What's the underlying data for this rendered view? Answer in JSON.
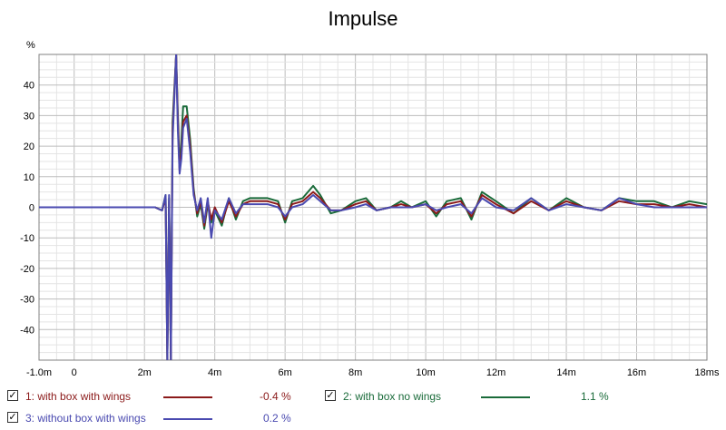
{
  "chart_data": {
    "type": "line",
    "title": "Impulse",
    "ylabel": "%",
    "xunit": "ms",
    "xlim": [
      -1.0,
      18.0
    ],
    "ylim": [
      -50,
      50
    ],
    "x_ticks": [
      {
        "value": -1.0,
        "label": "-1.0m"
      },
      {
        "value": 0,
        "label": "0"
      },
      {
        "value": 2,
        "label": "2m"
      },
      {
        "value": 4,
        "label": "4m"
      },
      {
        "value": 6,
        "label": "6m"
      },
      {
        "value": 8,
        "label": "8m"
      },
      {
        "value": 10,
        "label": "10m"
      },
      {
        "value": 12,
        "label": "12m"
      },
      {
        "value": 14,
        "label": "14m"
      },
      {
        "value": 16,
        "label": "16m"
      },
      {
        "value": 18,
        "label": "18ms"
      }
    ],
    "y_ticks": [
      40,
      30,
      20,
      10,
      0,
      -10,
      -20,
      -30,
      -40
    ],
    "grid": true,
    "legend_position": "bottom",
    "series": [
      {
        "name": "1: with box with wings",
        "legend_value": "-0.4 %",
        "color": "#8b1a1a",
        "x": [
          -1.0,
          0,
          1.0,
          2.0,
          2.3,
          2.5,
          2.6,
          2.65,
          2.7,
          2.75,
          2.8,
          2.9,
          2.95,
          3.0,
          3.05,
          3.1,
          3.2,
          3.3,
          3.4,
          3.5,
          3.6,
          3.7,
          3.8,
          3.9,
          4.0,
          4.2,
          4.4,
          4.6,
          4.8,
          5.0,
          5.2,
          5.5,
          5.8,
          6.0,
          6.2,
          6.5,
          6.8,
          7.0,
          7.3,
          7.6,
          8.0,
          8.3,
          8.6,
          9.0,
          9.3,
          9.6,
          10.0,
          10.3,
          10.6,
          11.0,
          11.3,
          11.6,
          12.0,
          12.5,
          13.0,
          13.5,
          14.0,
          14.5,
          15.0,
          15.5,
          16.0,
          16.5,
          17.0,
          17.5,
          18.0
        ],
        "y": [
          0,
          0,
          0,
          0,
          0,
          -1,
          3,
          -50,
          2,
          -50,
          25,
          50,
          28,
          12,
          18,
          28,
          30,
          20,
          5,
          -2,
          2,
          -6,
          2,
          -4,
          0,
          -5,
          2,
          -3,
          1,
          2,
          2,
          2,
          1,
          -4,
          1,
          2,
          5,
          3,
          -1,
          -1,
          1,
          2,
          -1,
          0,
          1,
          0,
          1,
          -2,
          1,
          2,
          -3,
          4,
          1,
          -2,
          2,
          -1,
          2,
          0,
          -1,
          2,
          1,
          1,
          0,
          1,
          0
        ]
      },
      {
        "name": "2: with box no wings",
        "legend_value": "1.1 %",
        "color": "#1a6b3a",
        "x": [
          -1.0,
          0,
          1.0,
          2.0,
          2.3,
          2.5,
          2.6,
          2.65,
          2.7,
          2.75,
          2.8,
          2.9,
          2.95,
          3.0,
          3.05,
          3.1,
          3.2,
          3.3,
          3.4,
          3.5,
          3.6,
          3.7,
          3.8,
          3.9,
          4.0,
          4.2,
          4.4,
          4.6,
          4.8,
          5.0,
          5.2,
          5.5,
          5.8,
          6.0,
          6.2,
          6.5,
          6.8,
          7.0,
          7.3,
          7.6,
          8.0,
          8.3,
          8.6,
          9.0,
          9.3,
          9.6,
          10.0,
          10.3,
          10.6,
          11.0,
          11.3,
          11.6,
          12.0,
          12.5,
          13.0,
          13.5,
          14.0,
          14.5,
          15.0,
          15.5,
          16.0,
          16.5,
          17.0,
          17.5,
          18.0
        ],
        "y": [
          0,
          0,
          0,
          0,
          0,
          -1,
          4,
          -50,
          3,
          -50,
          28,
          50,
          30,
          13,
          22,
          33,
          33,
          22,
          6,
          -3,
          1,
          -7,
          1,
          -5,
          -1,
          -6,
          3,
          -4,
          2,
          3,
          3,
          3,
          2,
          -5,
          2,
          3,
          7,
          4,
          -2,
          -1,
          2,
          3,
          -1,
          0,
          2,
          0,
          2,
          -3,
          2,
          3,
          -4,
          5,
          2,
          -2,
          3,
          -1,
          3,
          0,
          -1,
          3,
          2,
          2,
          0,
          2,
          1
        ]
      },
      {
        "name": "3: without box with wings",
        "legend_value": "0.2 %",
        "color": "#4a4ab0",
        "x": [
          -1.0,
          0,
          1.0,
          2.0,
          2.3,
          2.5,
          2.6,
          2.65,
          2.7,
          2.75,
          2.8,
          2.9,
          2.95,
          3.0,
          3.05,
          3.1,
          3.2,
          3.3,
          3.4,
          3.5,
          3.6,
          3.7,
          3.8,
          3.9,
          4.0,
          4.2,
          4.4,
          4.6,
          4.8,
          5.0,
          5.2,
          5.5,
          5.8,
          6.0,
          6.2,
          6.5,
          6.8,
          7.0,
          7.3,
          7.6,
          8.0,
          8.3,
          8.6,
          9.0,
          9.3,
          9.6,
          10.0,
          10.3,
          10.6,
          11.0,
          11.3,
          11.6,
          12.0,
          12.5,
          13.0,
          13.5,
          14.0,
          14.5,
          15.0,
          15.5,
          16.0,
          16.5,
          17.0,
          17.5,
          18.0
        ],
        "y": [
          0,
          0,
          0,
          0,
          0,
          -1,
          4,
          -50,
          4,
          -50,
          22,
          50,
          25,
          11,
          16,
          26,
          29,
          18,
          4,
          -1,
          3,
          -5,
          3,
          -10,
          -1,
          -4,
          3,
          -2,
          1,
          1,
          1,
          1,
          0,
          -3,
          0,
          1,
          4,
          2,
          -1,
          -1,
          0,
          1,
          -1,
          0,
          0,
          0,
          1,
          -1,
          0,
          1,
          -2,
          3,
          0,
          -1,
          3,
          -1,
          1,
          0,
          -1,
          3,
          1,
          0,
          0,
          0,
          0
        ]
      }
    ]
  }
}
